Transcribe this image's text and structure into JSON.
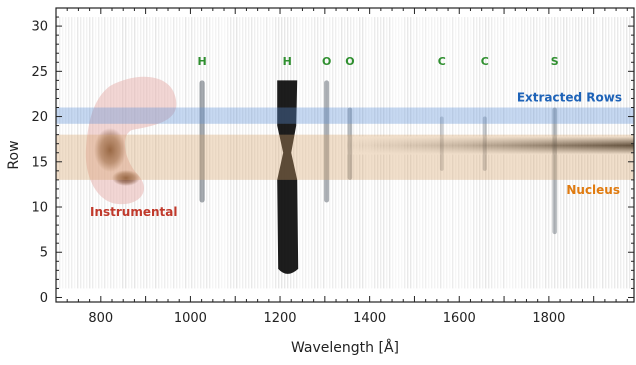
{
  "chart_data": {
    "type": "heatmap",
    "xlabel": "Wavelength [Å]",
    "ylabel": "Row",
    "xlim": [
      700,
      1990
    ],
    "ylim": [
      -0.5,
      32
    ],
    "x_ticks": [
      {
        "value": 800,
        "label": "800"
      },
      {
        "value": 1000,
        "label": "1000"
      },
      {
        "value": 1200,
        "label": "1200"
      },
      {
        "value": 1400,
        "label": "1400"
      },
      {
        "value": 1600,
        "label": "1600"
      },
      {
        "value": 1800,
        "label": "1800"
      }
    ],
    "y_ticks": [
      {
        "value": 0,
        "label": "0"
      },
      {
        "value": 5,
        "label": "5"
      },
      {
        "value": 10,
        "label": "10"
      },
      {
        "value": 15,
        "label": "15"
      },
      {
        "value": 20,
        "label": "20"
      },
      {
        "value": 25,
        "label": "25"
      },
      {
        "value": 30,
        "label": "30"
      }
    ],
    "emission_lines": [
      {
        "label": "H",
        "wavelength": 1026,
        "row_min": 10.5,
        "row_max": 24,
        "intensity": 0.45
      },
      {
        "label": "H",
        "wavelength": 1216,
        "row_min": 2.5,
        "row_max": 24,
        "intensity": 1.0
      },
      {
        "label": "O",
        "wavelength": 1304,
        "row_min": 10.5,
        "row_max": 24,
        "intensity": 0.4
      },
      {
        "label": "O",
        "wavelength": 1356,
        "row_min": 13,
        "row_max": 21,
        "intensity": 0.3
      },
      {
        "label": "C",
        "wavelength": 1561,
        "row_min": 14,
        "row_max": 20,
        "intensity": 0.15
      },
      {
        "label": "C",
        "wavelength": 1657,
        "row_min": 14,
        "row_max": 20,
        "intensity": 0.2
      },
      {
        "label": "S",
        "wavelength": 1813,
        "row_min": 7,
        "row_max": 21,
        "intensity": 0.3
      }
    ],
    "line_label_row": 25.7,
    "regions": [
      {
        "label": "Extracted Rows",
        "row_min": 19.2,
        "row_max": 21,
        "color": "#5b8ed6",
        "label_color": "#1e63b8"
      },
      {
        "label": "Nucleus",
        "row_min": 13,
        "row_max": 18,
        "color": "#d6a36b",
        "label_color": "#e07b10"
      }
    ],
    "annotations": [
      {
        "label": "Instrumental",
        "color": "#c0392b"
      }
    ],
    "continuum": {
      "row_center": 16.8,
      "start_wavelength": 1350
    },
    "grid": false,
    "legend": "none"
  }
}
